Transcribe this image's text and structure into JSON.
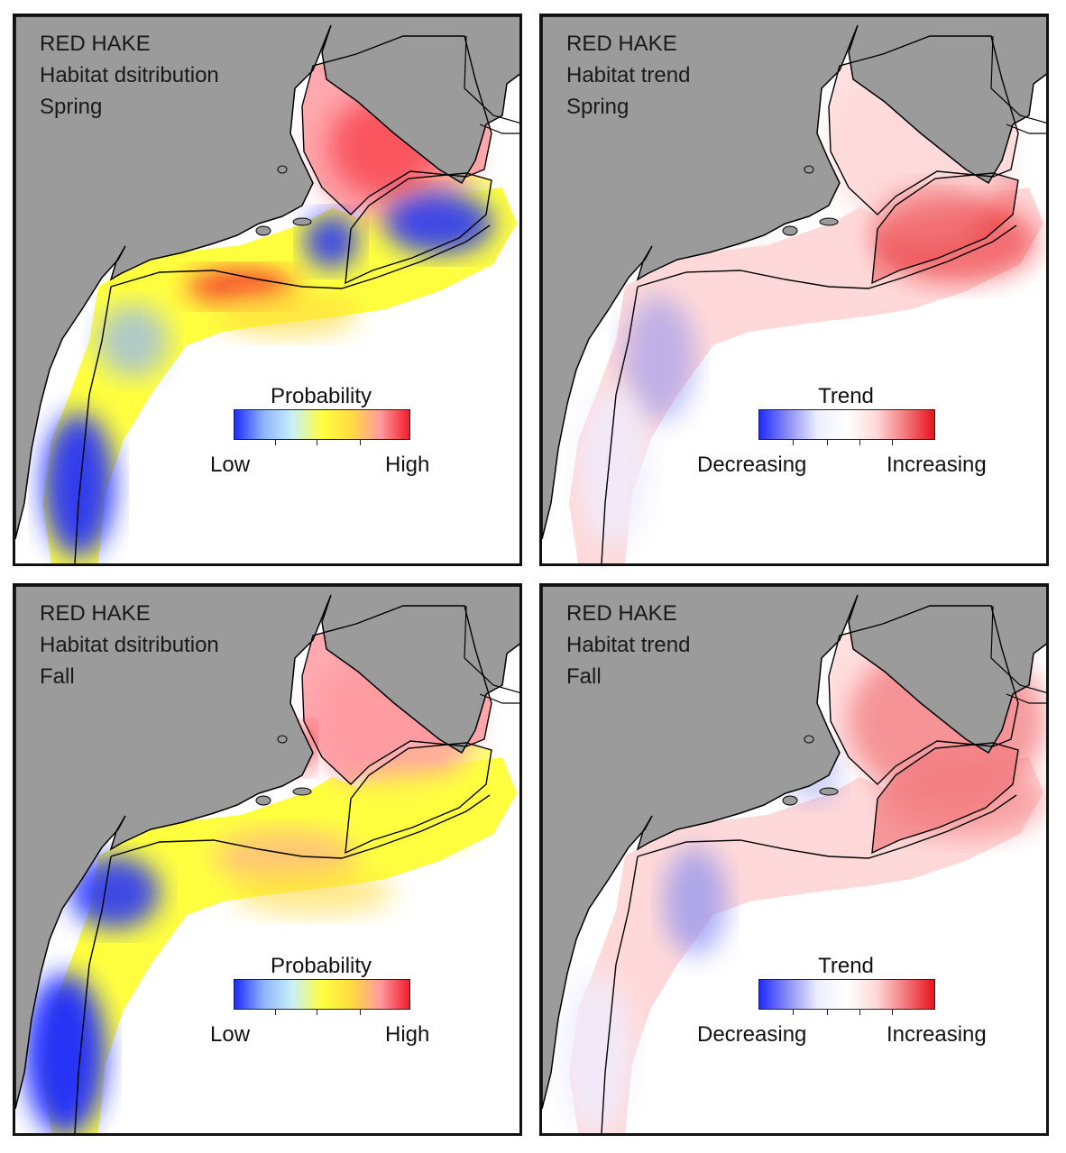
{
  "panels": [
    {
      "species": "RED HAKE",
      "metric": "Habitat dsitribution",
      "season": "Spring",
      "legend": {
        "title": "Probability",
        "low": "Low",
        "high": "High"
      },
      "scale": "probability",
      "colors": [
        "#1f2bff",
        "#8fb4ff",
        "#c9f0f5",
        "#ffff40",
        "#ffdc40",
        "#ff9aa0",
        "#f41b2a"
      ]
    },
    {
      "species": "RED HAKE",
      "metric": "Habitat trend",
      "season": "Spring",
      "legend": {
        "title": "Trend",
        "low": "Decreasing",
        "high": "Increasing"
      },
      "scale": "trend",
      "colors": [
        "#1f2bff",
        "#8c90f0",
        "#eeeeff",
        "#ffffff",
        "#ffd9d9",
        "#f27a7e",
        "#e8121c"
      ]
    },
    {
      "species": "RED HAKE",
      "metric": "Habitat dsitribution",
      "season": "Fall",
      "legend": {
        "title": "Probability",
        "low": "Low",
        "high": "High"
      },
      "scale": "probability",
      "colors": [
        "#1f2bff",
        "#8fb4ff",
        "#c9f0f5",
        "#ffff40",
        "#ffdc40",
        "#ff9aa0",
        "#f41b2a"
      ]
    },
    {
      "species": "RED HAKE",
      "metric": "Habitat trend",
      "season": "Fall",
      "legend": {
        "title": "Trend",
        "low": "Decreasing",
        "high": "Increasing"
      },
      "scale": "trend",
      "colors": [
        "#1f2bff",
        "#8c90f0",
        "#eeeeff",
        "#ffffff",
        "#ffd9d9",
        "#f27a7e",
        "#e8121c"
      ]
    }
  ],
  "land_color": "#9b9b9b",
  "outline_color": "#000000"
}
